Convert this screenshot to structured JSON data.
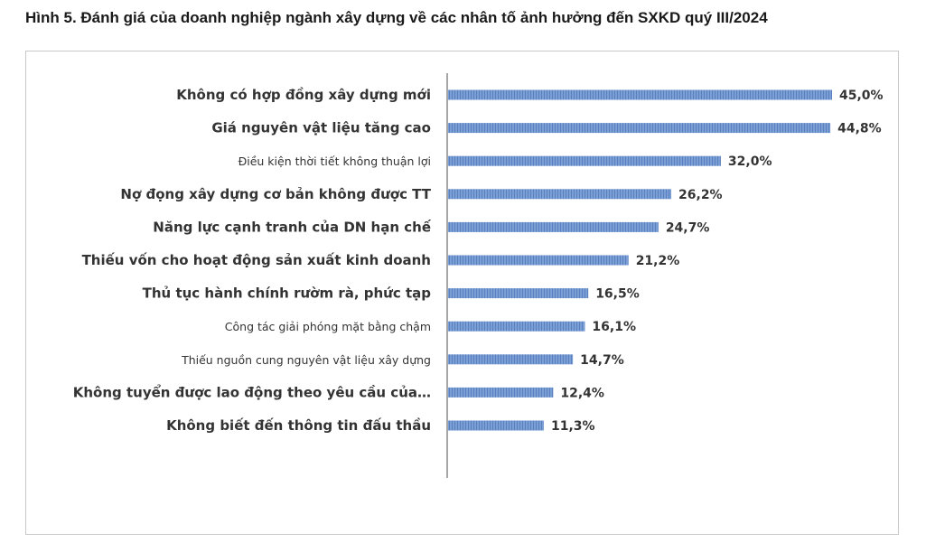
{
  "figure": {
    "title": "Hình 5. Đánh giá của doanh nghiệp ngành xây dựng về các nhân tố ảnh hưởng đến SXKD quý III/2024"
  },
  "colors": {
    "bar_fill": "#7a9fd4",
    "bar_stripe": "#5c80bf",
    "axis": "#a6a6a6",
    "text": "#333333"
  },
  "chart_data": {
    "type": "bar",
    "orientation": "horizontal",
    "categories": [
      "Không có hợp đồng xây dựng mới",
      "Giá nguyên vật liệu tăng cao",
      "Điều kiện thời tiết không thuận lợi",
      "Nợ đọng xây dựng cơ bản không được TT",
      "Năng lực cạnh tranh của DN hạn chế",
      "Thiếu vốn cho hoạt động sản xuất kinh doanh",
      "Thủ tục hành chính rườm rà, phức tạp",
      "Công tác giải phóng mặt bằng chậm",
      "Thiếu nguồn cung nguyên vật liệu xây dựng",
      "Không tuyển được lao động theo yêu cầu của…",
      "Không biết đến thông tin đấu thầu"
    ],
    "values": [
      45.0,
      44.8,
      32.0,
      26.2,
      24.7,
      21.2,
      16.5,
      16.1,
      14.7,
      12.4,
      11.3
    ],
    "value_labels": [
      "45,0%",
      "44,8%",
      "32,0%",
      "26,2%",
      "24,7%",
      "21,2%",
      "16,5%",
      "16,1%",
      "14,7%",
      "12,4%",
      "11,3%"
    ],
    "unit": "%",
    "xlim": [
      0,
      45
    ],
    "grid": false,
    "legend": "none"
  }
}
